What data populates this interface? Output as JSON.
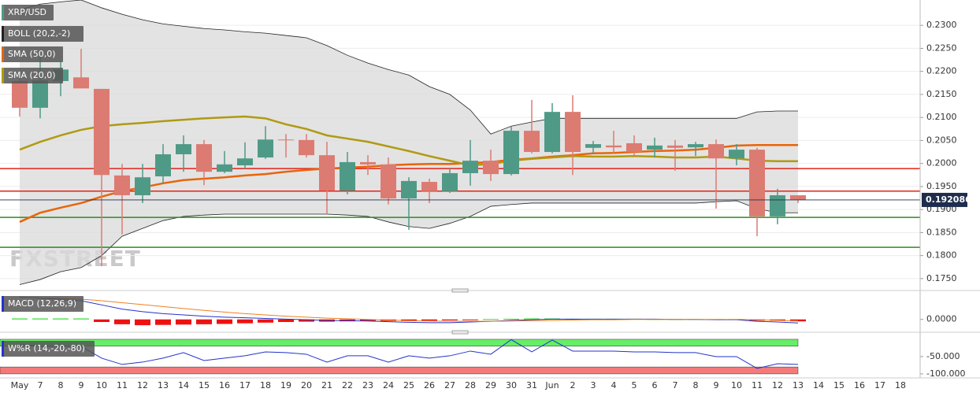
{
  "chart_data": [
    {
      "type": "candlestick",
      "title": "XRP/USD",
      "categories": [
        "May",
        "7",
        "8",
        "9",
        "10",
        "11",
        "12",
        "13",
        "14",
        "15",
        "16",
        "17",
        "18",
        "19",
        "20",
        "21",
        "22",
        "23",
        "24",
        "25",
        "26",
        "27",
        "28",
        "29",
        "30",
        "31",
        "Jun",
        "2",
        "3",
        "4",
        "5",
        "6",
        "7",
        "8",
        "9",
        "10",
        "11",
        "12",
        "13",
        "14",
        "15",
        "16",
        "17",
        "18"
      ],
      "open": [
        0.2179,
        0.2121,
        0.2179,
        0.2187,
        0.2162,
        0.1974,
        0.1931,
        0.1972,
        0.202,
        0.2042,
        0.1982,
        0.1996,
        0.2013,
        0.2052,
        0.2051,
        0.2018,
        0.1941,
        0.2003,
        0.1998,
        0.1924,
        0.196,
        0.194,
        0.1979,
        0.2006,
        0.1977,
        0.2071,
        0.2025,
        0.2112,
        0.2034,
        0.2039,
        0.2044,
        0.203,
        0.2039,
        0.2035,
        0.2042,
        0.2011,
        0.203,
        0.1885,
        0.1931,
        null,
        null,
        null,
        null,
        null
      ],
      "high": [
        0.2192,
        0.2232,
        0.2221,
        0.2249,
        0.2162,
        0.1999,
        0.1999,
        0.2042,
        0.2061,
        0.2051,
        0.2027,
        0.2046,
        0.2081,
        0.2064,
        0.2064,
        0.2047,
        0.2025,
        0.2018,
        0.2013,
        0.197,
        0.1967,
        0.1989,
        0.2051,
        0.203,
        0.2081,
        0.2138,
        0.2131,
        0.2148,
        0.2049,
        0.2071,
        0.2061,
        0.2056,
        0.2051,
        0.2047,
        0.2052,
        0.2042,
        0.2034,
        0.1945,
        0.1931,
        null,
        null,
        null,
        null,
        null
      ],
      "low": [
        0.2102,
        0.2098,
        0.2146,
        0.2163,
        0.1777,
        0.1846,
        0.1914,
        0.1957,
        0.1982,
        0.1953,
        0.1979,
        0.1989,
        0.201,
        0.2013,
        0.2013,
        0.189,
        0.1933,
        0.1975,
        0.1911,
        0.1856,
        0.1914,
        0.1936,
        0.1952,
        0.1962,
        0.1974,
        0.2022,
        0.2022,
        0.1975,
        0.2022,
        0.2022,
        0.2016,
        0.2013,
        0.1984,
        0.2016,
        0.1902,
        0.1996,
        0.1842,
        0.1868,
        0.1914,
        null,
        null,
        null,
        null,
        null
      ],
      "close": [
        0.2121,
        0.218,
        0.2204,
        0.2163,
        0.1975,
        0.1931,
        0.197,
        0.202,
        0.2042,
        0.1982,
        0.1998,
        0.2011,
        0.2052,
        0.2051,
        0.2018,
        0.1941,
        0.2003,
        0.1998,
        0.1924,
        0.1962,
        0.194,
        0.1979,
        0.2006,
        0.1977,
        0.2071,
        0.2025,
        0.2112,
        0.2025,
        0.2042,
        0.2035,
        0.2025,
        0.2039,
        0.2034,
        0.2042,
        0.2011,
        0.203,
        0.1885,
        0.1931,
        0.1921,
        null,
        null,
        null,
        null,
        null
      ],
      "up_color": "#4f9a86",
      "down_color": "#dc7b72",
      "overlays": [
        {
          "name": "BOLL (20,2,-2)",
          "color": "#222222",
          "fill": "#d9d9d9",
          "upper": [
            0.2334,
            0.2346,
            0.2351,
            0.2355,
            0.2338,
            0.2324,
            0.2312,
            0.2303,
            0.2298,
            0.2293,
            0.229,
            0.2286,
            0.2283,
            0.2278,
            0.2273,
            0.2256,
            0.2235,
            0.2218,
            0.2204,
            0.2192,
            0.2167,
            0.215,
            0.2116,
            0.2064,
            0.2081,
            0.209,
            0.2098,
            0.2098,
            0.2098,
            0.2098,
            0.2098,
            0.2098,
            0.2098,
            0.2098,
            0.2098,
            0.2098,
            0.2112,
            0.2114,
            0.2114,
            null,
            null,
            null,
            null,
            null
          ],
          "lower": [
            0.1737,
            0.1748,
            0.1765,
            0.1774,
            0.18,
            0.1842,
            0.1859,
            0.1876,
            0.1885,
            0.1888,
            0.189,
            0.189,
            0.189,
            0.189,
            0.189,
            0.189,
            0.1888,
            0.1885,
            0.1873,
            0.1863,
            0.1859,
            0.187,
            0.1885,
            0.1907,
            0.1911,
            0.1914,
            0.1914,
            0.1914,
            0.1914,
            0.1914,
            0.1914,
            0.1914,
            0.1914,
            0.1914,
            0.1917,
            0.1919,
            0.1902,
            0.1893,
            0.1893,
            null,
            null,
            null,
            null,
            null
          ]
        },
        {
          "name": "SMA (50,0)",
          "color": "#e8650a",
          "values": [
            0.1873,
            0.1893,
            0.1904,
            0.1914,
            0.1928,
            0.194,
            0.1948,
            0.1957,
            0.1964,
            0.1967,
            0.197,
            0.1974,
            0.1977,
            0.1982,
            0.1986,
            0.1989,
            0.1991,
            0.1993,
            0.1996,
            0.1998,
            0.1999,
            0.1999,
            0.2001,
            0.2003,
            0.2008,
            0.2011,
            0.2015,
            0.2018,
            0.2022,
            0.2023,
            0.2025,
            0.2027,
            0.2028,
            0.203,
            0.2034,
            0.2039,
            0.204,
            0.204,
            0.204,
            null,
            null,
            null,
            null,
            null
          ]
        },
        {
          "name": "SMA (20,0)",
          "color": "#b09a12",
          "values": [
            0.203,
            0.2047,
            0.2061,
            0.2073,
            0.2081,
            0.2085,
            0.2088,
            0.2092,
            0.2095,
            0.2098,
            0.21,
            0.2102,
            0.2098,
            0.2085,
            0.2075,
            0.2061,
            0.2054,
            0.2047,
            0.2037,
            0.2027,
            0.2016,
            0.2006,
            0.1996,
            0.1999,
            0.2006,
            0.201,
            0.2013,
            0.2016,
            0.2015,
            0.2015,
            0.2016,
            0.2015,
            0.2013,
            0.2013,
            0.2015,
            0.2011,
            0.2006,
            0.2005,
            0.2005,
            null,
            null,
            null,
            null,
            null
          ]
        }
      ],
      "levels": [
        {
          "value": 0.1989,
          "color": "#e2231a"
        },
        {
          "value": 0.194,
          "color": "#e2231a"
        },
        {
          "value": 0.1883,
          "color": "#2e8b1e"
        },
        {
          "value": 0.1818,
          "color": "#2e8b1e"
        }
      ],
      "last_price": 0.192086,
      "last_price_color": "#1f2d4d",
      "watermark": "FXSTREET",
      "ylim": [
        0.1731,
        0.2355
      ],
      "yticks": [
        {
          "value": 0.175,
          "label": "0.1750"
        },
        {
          "value": 0.18,
          "label": "0.1800"
        },
        {
          "value": 0.185,
          "label": "0.1850"
        },
        {
          "value": 0.19,
          "label": "0.1900"
        },
        {
          "value": 0.195,
          "label": "0.1950"
        },
        {
          "value": 0.2,
          "label": "0.2000"
        },
        {
          "value": 0.205,
          "label": "0.2050"
        },
        {
          "value": 0.21,
          "label": "0.2100"
        },
        {
          "value": 0.215,
          "label": "0.2150"
        },
        {
          "value": 0.22,
          "label": "0.2200"
        },
        {
          "value": 0.225,
          "label": "0.2250"
        },
        {
          "value": 0.23,
          "label": "0.2300"
        }
      ],
      "grid": true
    },
    {
      "type": "macd",
      "title": "MACD (12,26,9)",
      "histogram": [
        0.0003,
        0.0003,
        0.0003,
        0.0003,
        -0.0008,
        -0.0015,
        -0.0018,
        -0.0017,
        -0.0016,
        -0.0015,
        -0.0014,
        -0.0012,
        -0.001,
        -0.0008,
        -0.0007,
        -0.0007,
        -0.0006,
        -0.0005,
        -0.0005,
        -0.0005,
        -0.0004,
        -0.0003,
        -0.0002,
        0.0001,
        0.0002,
        0.0003,
        0.0003,
        0.0002,
        0.0002,
        0.0002,
        0.0002,
        0.0001,
        0.0001,
        0.0001,
        0.0001,
        0.0001,
        -0.0004,
        -0.0004,
        -0.0006
      ],
      "pos_color": "#33dd33",
      "neg_color": "#ee1111",
      "series": [
        {
          "name": "MACD",
          "color": "#2233cc",
          "values": [
            0.007,
            0.0066,
            0.0062,
            0.0058,
            0.0045,
            0.0032,
            0.0024,
            0.0018,
            0.0014,
            0.001,
            0.0007,
            0.0005,
            0.0003,
            0.0001,
            -0.0001,
            -0.0003,
            -0.0004,
            -0.0005,
            -0.0007,
            -0.0009,
            -0.001,
            -0.001,
            -0.0008,
            -0.0006,
            -0.0003,
            -0.0001,
            0.0001,
            0.0001,
            0.0001,
            0.0001,
            0.0001,
            0.0001,
            0.0,
            0.0,
            -0.0001,
            -0.0001,
            -0.0006,
            -0.0008,
            -0.0011
          ]
        },
        {
          "name": "Signal",
          "color": "#f08020",
          "values": [
            0.0068,
            0.0067,
            0.0065,
            0.0063,
            0.0058,
            0.0052,
            0.0046,
            0.004,
            0.0034,
            0.0028,
            0.0023,
            0.0018,
            0.0014,
            0.001,
            0.0007,
            0.0004,
            0.0002,
            0.0,
            -0.0002,
            -0.0004,
            -0.0005,
            -0.0006,
            -0.0006,
            -0.0006,
            -0.0005,
            -0.0004,
            -0.0003,
            -0.0002,
            -0.0001,
            -0.0001,
            0.0,
            0.0,
            0.0,
            0.0,
            0.0,
            0.0,
            -0.0001,
            -0.0003,
            -0.0005
          ]
        }
      ],
      "ylim": [
        -0.003,
        0.008
      ],
      "yticks": [
        {
          "value": 0,
          "label": "0.0000"
        }
      ]
    },
    {
      "type": "williams",
      "title": "W%R (14,-20,-80)",
      "values": [
        -13.6,
        -20.5,
        -20.5,
        -20.5,
        -54.5,
        -72.7,
        -65.9,
        -54.5,
        -38.6,
        -61.4,
        -54.5,
        -47.7,
        -36.4,
        -38.6,
        -43.2,
        -65.9,
        -47.7,
        -47.7,
        -65.9,
        -47.7,
        -54.5,
        -47.7,
        -34.1,
        -43.2,
        -1.0,
        -36.4,
        -2.3,
        -34.1,
        -34.1,
        -34.1,
        -36.4,
        -36.4,
        -38.6,
        -38.6,
        -50.0,
        -50.0,
        -84.1,
        -70.5,
        -72.7
      ],
      "color": "#2233cc",
      "bands": [
        {
          "from": 0,
          "to": -20,
          "color": "#66ee66"
        },
        {
          "from": -80,
          "to": -100,
          "color": "#f47a7a"
        }
      ],
      "ylim": [
        -107,
        9
      ],
      "yticks": [
        {
          "value": -50,
          "label": "-50.000"
        },
        {
          "value": -100,
          "label": "-100.000"
        }
      ]
    }
  ]
}
